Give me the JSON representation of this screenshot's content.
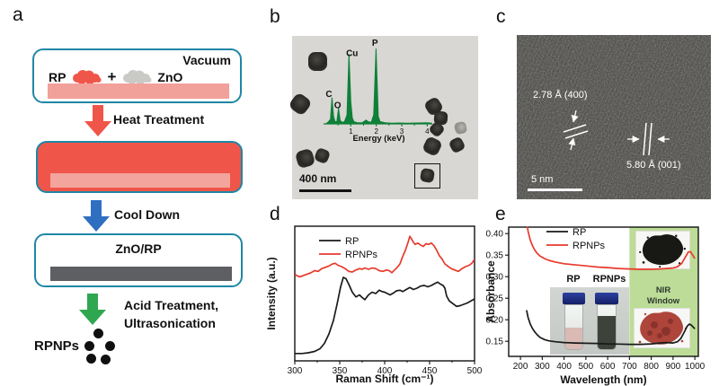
{
  "figure": {
    "panels": {
      "a": {
        "letter": "a",
        "vacuum_label": "Vacuum",
        "rp_label": "RP",
        "plus": "+",
        "zno_label": "ZnO",
        "heat_label": "Heat Treatment",
        "cool_label": "Cool Down",
        "znorp_label": "ZnO/RP",
        "acid_line1": "Acid Treatment,",
        "acid_line2": "Ultrasonication",
        "product_label": "RPNPs",
        "colors": {
          "teal_border": "#1f87a5",
          "red": "#f0554a",
          "salmon": "#f2a09a",
          "blue_arrow": "#2f6fc1",
          "green_arrow": "#2fa750",
          "gray_bar": "#5d5f63"
        }
      },
      "b": {
        "letter": "b",
        "scale_bar": "400 nm"
      },
      "c": {
        "letter": "c",
        "d_spacing_1": "2.78 Å (400)",
        "d_spacing_2": "5.80 Å (001)",
        "scale_bar": "5 nm"
      },
      "d": {
        "letter": "d"
      },
      "e": {
        "letter": "e",
        "vial_left_label": "RP",
        "vial_right_label": "RPNPs",
        "nir_line1": "NIR",
        "nir_line2": "Window"
      }
    }
  },
  "chart_data": [
    {
      "id": "chart-d",
      "type": "line",
      "title": "",
      "xlabel": "Raman Shift (cm⁻¹)",
      "ylabel": "Intensity (a.u.)",
      "xlim": [
        300,
        500
      ],
      "ylim": [
        0,
        1
      ],
      "xticks": [
        300,
        350,
        400,
        450,
        500
      ],
      "xticks_minor": [
        325,
        375,
        425,
        475
      ],
      "yticks": [],
      "grid": false,
      "legend_position": "top-left",
      "series": [
        {
          "name": "RP",
          "color": "#1a1a1a",
          "x": [
            300,
            308,
            315,
            322,
            328,
            333,
            338,
            343,
            347,
            351,
            354,
            357,
            360,
            364,
            368,
            372,
            375,
            378,
            382,
            386,
            390,
            394,
            397,
            400,
            403,
            406,
            410,
            413,
            417,
            420,
            424,
            428,
            432,
            436,
            440,
            444,
            448,
            452,
            456,
            459,
            462,
            465,
            467,
            469,
            472,
            476,
            480,
            484,
            488,
            492,
            496,
            500
          ],
          "y": [
            0.055,
            0.055,
            0.06,
            0.07,
            0.09,
            0.13,
            0.2,
            0.3,
            0.42,
            0.55,
            0.62,
            0.61,
            0.57,
            0.51,
            0.475,
            0.49,
            0.47,
            0.455,
            0.49,
            0.51,
            0.5,
            0.525,
            0.515,
            0.51,
            0.5,
            0.49,
            0.505,
            0.52,
            0.525,
            0.515,
            0.53,
            0.545,
            0.53,
            0.54,
            0.555,
            0.56,
            0.55,
            0.56,
            0.575,
            0.585,
            0.57,
            0.56,
            0.54,
            0.48,
            0.445,
            0.425,
            0.405,
            0.41,
            0.42,
            0.43,
            0.445,
            0.46
          ]
        },
        {
          "name": "RPNPs",
          "color": "#e8392b",
          "x": [
            300,
            303,
            306,
            310,
            314,
            318,
            322,
            326,
            330,
            334,
            338,
            342,
            345,
            348,
            352,
            356,
            360,
            364,
            368,
            372,
            375,
            378,
            382,
            386,
            390,
            394,
            398,
            402,
            405,
            408,
            411,
            414,
            417,
            420,
            423,
            426,
            428,
            430,
            432,
            434,
            437,
            440,
            443,
            446,
            449,
            452,
            455,
            458,
            461,
            464,
            467,
            470,
            474,
            478,
            482,
            486,
            490,
            494,
            497,
            500
          ],
          "y": [
            0.645,
            0.63,
            0.625,
            0.635,
            0.645,
            0.655,
            0.67,
            0.665,
            0.685,
            0.695,
            0.705,
            0.72,
            0.725,
            0.71,
            0.7,
            0.685,
            0.665,
            0.66,
            0.675,
            0.685,
            0.68,
            0.69,
            0.68,
            0.69,
            0.685,
            0.67,
            0.665,
            0.675,
            0.67,
            0.655,
            0.675,
            0.695,
            0.72,
            0.775,
            0.82,
            0.88,
            0.925,
            0.905,
            0.88,
            0.865,
            0.875,
            0.86,
            0.85,
            0.87,
            0.865,
            0.875,
            0.855,
            0.82,
            0.78,
            0.755,
            0.72,
            0.705,
            0.685,
            0.675,
            0.665,
            0.685,
            0.7,
            0.71,
            0.725,
            0.755
          ]
        }
      ]
    },
    {
      "id": "chart-e",
      "type": "line",
      "title": "",
      "xlabel": "Wavelength (nm)",
      "ylabel": "Absorbance",
      "xlim": [
        146,
        1016
      ],
      "ylim": [
        0.115,
        0.415
      ],
      "xticks": [
        200,
        300,
        400,
        500,
        600,
        700,
        800,
        900,
        1000
      ],
      "yticks": [
        "0.15",
        "0.20",
        "0.25",
        "0.30",
        "0.35",
        "0.40"
      ],
      "grid": false,
      "legend_position": "top-left",
      "region": {
        "x0": 700,
        "x1": 1016,
        "color": "#bcdc97",
        "label": "NIR Window"
      },
      "series": [
        {
          "name": "RP",
          "color": "#1a1a1a",
          "x": [
            228,
            235,
            245,
            255,
            265,
            275,
            290,
            310,
            330,
            360,
            400,
            450,
            500,
            550,
            600,
            650,
            700,
            750,
            800,
            840,
            870,
            900,
            920,
            935,
            950,
            965,
            975,
            985,
            1000
          ],
          "y": [
            0.222,
            0.205,
            0.19,
            0.18,
            0.172,
            0.166,
            0.159,
            0.154,
            0.151,
            0.149,
            0.147,
            0.146,
            0.1455,
            0.145,
            0.144,
            0.1435,
            0.143,
            0.143,
            0.144,
            0.146,
            0.147,
            0.146,
            0.149,
            0.156,
            0.17,
            0.185,
            0.19,
            0.187,
            0.179
          ]
        },
        {
          "name": "RPNPs",
          "color": "#e8392b",
          "x": [
            228,
            235,
            245,
            255,
            265,
            275,
            290,
            310,
            330,
            360,
            400,
            440,
            480,
            520,
            560,
            600,
            650,
            700,
            750,
            800,
            840,
            870,
            900,
            920,
            940,
            955,
            970,
            980,
            990,
            1000
          ],
          "y": [
            0.428,
            0.405,
            0.385,
            0.372,
            0.362,
            0.355,
            0.348,
            0.342,
            0.338,
            0.334,
            0.33,
            0.328,
            0.326,
            0.324,
            0.322,
            0.321,
            0.319,
            0.318,
            0.317,
            0.317,
            0.318,
            0.319,
            0.32,
            0.323,
            0.331,
            0.344,
            0.357,
            0.358,
            0.35,
            0.342
          ]
        }
      ]
    },
    {
      "id": "chart-eds",
      "type": "line",
      "title": "",
      "xlabel": "Energy (keV)",
      "ylabel": "",
      "xlim": [
        0,
        4.2
      ],
      "ylim": [
        0,
        1.05
      ],
      "xticks": [
        1,
        2,
        3,
        4
      ],
      "xticks_minor": [
        0.5,
        1.5,
        2.5,
        3.5
      ],
      "yticks": [],
      "grid": false,
      "annotations": [
        {
          "x": 0.14,
          "y": 0.36,
          "text": "C"
        },
        {
          "x": 0.48,
          "y": 0.21,
          "text": "O"
        },
        {
          "x": 1.05,
          "y": 0.9,
          "text": "Cu"
        },
        {
          "x": 1.95,
          "y": 1.04,
          "text": "P"
        }
      ],
      "series": [
        {
          "name": "EDS",
          "color": "#0f8038",
          "fill": true,
          "x": [
            0.05,
            0.1,
            0.2,
            0.26,
            0.32,
            0.38,
            0.45,
            0.52,
            0.58,
            0.65,
            0.75,
            0.85,
            0.93,
            1.0,
            1.06,
            1.12,
            1.25,
            1.45,
            1.6,
            1.68,
            1.8,
            1.9,
            1.99,
            2.08,
            2.15,
            2.35,
            2.6,
            2.9,
            3.2,
            3.6,
            4.0,
            4.17
          ],
          "y": [
            0.01,
            0.02,
            0.06,
            0.35,
            0.1,
            0.03,
            0.03,
            0.21,
            0.05,
            0.02,
            0.03,
            0.12,
            0.93,
            0.3,
            0.08,
            0.03,
            0.015,
            0.015,
            0.05,
            0.03,
            0.02,
            0.12,
            1.0,
            0.1,
            0.03,
            0.015,
            0.01,
            0.012,
            0.01,
            0.012,
            0.015,
            0.01
          ]
        }
      ]
    }
  ]
}
